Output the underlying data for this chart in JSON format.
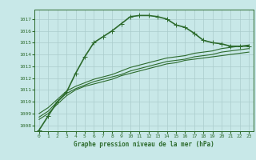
{
  "title": "Graphe pression niveau de la mer (hPa)",
  "background_color": "#c8e8e8",
  "grid_color": "#aacccc",
  "line_color": "#2d6b2d",
  "xlim": [
    -0.5,
    23.5
  ],
  "ylim": [
    1007.5,
    1017.8
  ],
  "yticks": [
    1008,
    1009,
    1010,
    1011,
    1012,
    1013,
    1014,
    1015,
    1016,
    1017
  ],
  "xticks": [
    0,
    1,
    2,
    3,
    4,
    5,
    6,
    7,
    8,
    9,
    10,
    11,
    12,
    13,
    14,
    15,
    16,
    17,
    18,
    19,
    20,
    21,
    22,
    23
  ],
  "series": [
    {
      "x": [
        0,
        1,
        2,
        3,
        4,
        5,
        6,
        7,
        8,
        9,
        10,
        11,
        12,
        13,
        14,
        15,
        16,
        17,
        18,
        19,
        20,
        21,
        22,
        23
      ],
      "y": [
        1007.6,
        1008.8,
        1010.0,
        1010.8,
        1012.4,
        1013.8,
        1015.0,
        1015.5,
        1016.0,
        1016.6,
        1017.2,
        1017.3,
        1017.3,
        1017.2,
        1017.0,
        1016.5,
        1016.3,
        1015.8,
        1015.2,
        1015.0,
        1014.9,
        1014.7,
        1014.7,
        1014.7
      ],
      "marker": "+",
      "linewidth": 1.2,
      "markersize": 4
    },
    {
      "x": [
        0,
        1,
        2,
        3,
        4,
        5,
        6,
        7,
        8,
        9,
        10,
        11,
        12,
        13,
        14,
        15,
        16,
        17,
        18,
        19,
        20,
        21,
        22,
        23
      ],
      "y": [
        1008.5,
        1009.0,
        1009.8,
        1010.5,
        1011.0,
        1011.3,
        1011.5,
        1011.7,
        1011.9,
        1012.2,
        1012.4,
        1012.6,
        1012.8,
        1013.0,
        1013.2,
        1013.3,
        1013.5,
        1013.6,
        1013.7,
        1013.8,
        1013.9,
        1014.0,
        1014.1,
        1014.2
      ],
      "marker": null,
      "linewidth": 0.8,
      "markersize": 0
    },
    {
      "x": [
        0,
        1,
        2,
        3,
        4,
        5,
        6,
        7,
        8,
        9,
        10,
        11,
        12,
        13,
        14,
        15,
        16,
        17,
        18,
        19,
        20,
        21,
        22,
        23
      ],
      "y": [
        1008.7,
        1009.2,
        1010.0,
        1010.7,
        1011.1,
        1011.4,
        1011.7,
        1011.9,
        1012.1,
        1012.3,
        1012.6,
        1012.8,
        1013.0,
        1013.2,
        1013.4,
        1013.5,
        1013.6,
        1013.8,
        1013.9,
        1014.0,
        1014.2,
        1014.3,
        1014.4,
        1014.5
      ],
      "marker": null,
      "linewidth": 0.8,
      "markersize": 0
    },
    {
      "x": [
        0,
        1,
        2,
        3,
        4,
        5,
        6,
        7,
        8,
        9,
        10,
        11,
        12,
        13,
        14,
        15,
        16,
        17,
        18,
        19,
        20,
        21,
        22,
        23
      ],
      "y": [
        1009.0,
        1009.5,
        1010.2,
        1010.9,
        1011.3,
        1011.6,
        1011.9,
        1012.1,
        1012.3,
        1012.6,
        1012.9,
        1013.1,
        1013.3,
        1013.5,
        1013.7,
        1013.8,
        1013.9,
        1014.1,
        1014.2,
        1014.3,
        1014.5,
        1014.6,
        1014.7,
        1014.8
      ],
      "marker": null,
      "linewidth": 0.8,
      "markersize": 0
    }
  ]
}
